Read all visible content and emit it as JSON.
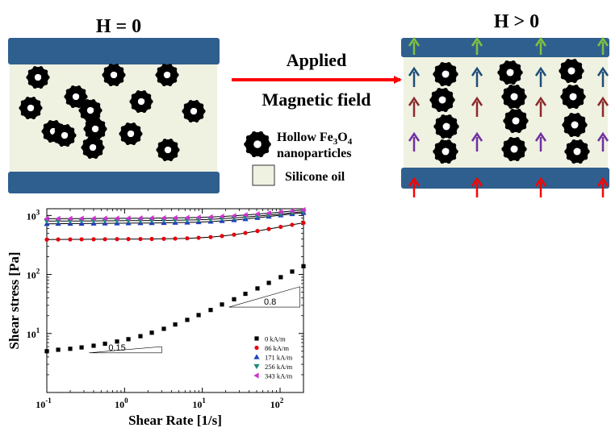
{
  "left_panel": {
    "title": "H = 0"
  },
  "right_panel": {
    "title": "H > 0"
  },
  "arrow_label": {
    "line1": "Applied",
    "line2": "Magnetic field"
  },
  "legend": {
    "particle_line1": "Hollow Fe",
    "particle_sub": "3",
    "particle_mid": "O",
    "particle_sub2": "4",
    "particle_line2": "nanoparticles",
    "oil_label": "Silicone oil"
  },
  "colors": {
    "plate": "#2f5f8e",
    "fluid": "#eff1e1",
    "arrow": "#ff0000",
    "field_rows": [
      "#80c040",
      "#1f4e79",
      "#8b2a2a",
      "#7030a0",
      "#ff0000"
    ]
  },
  "chart_data": {
    "type": "scatter",
    "xlabel": "Shear Rate [1/s]",
    "ylabel": "Shear stress [Pa]",
    "xscale": "log",
    "yscale": "log",
    "xlim": [
      0.1,
      200
    ],
    "ylim": [
      1,
      1300
    ],
    "x_ticks": [
      "10",
      "10",
      "10",
      "10"
    ],
    "x_tick_exps": [
      "-1",
      "0",
      "1",
      "2"
    ],
    "y_ticks": [
      "10",
      "10",
      "10"
    ],
    "y_tick_exps": [
      "1",
      "2",
      "3"
    ],
    "legend_position": "lower-right",
    "annotations": [
      "0.15",
      "0.8"
    ],
    "series": [
      {
        "name": "0 kA/m",
        "color": "#000000",
        "marker": "square",
        "x": [
          0.1,
          0.14,
          0.2,
          0.28,
          0.4,
          0.56,
          0.8,
          1.12,
          1.6,
          2.24,
          3.2,
          4.48,
          6.4,
          8.96,
          12.8,
          17.9,
          25.6,
          35.8,
          51.2,
          71.7,
          102,
          143,
          200
        ],
        "y": [
          5.0,
          5.3,
          5.5,
          5.8,
          6.2,
          6.7,
          7.3,
          8.0,
          9.0,
          10.3,
          12.0,
          14.2,
          17.0,
          20.5,
          25.0,
          31.0,
          38.0,
          47.0,
          58.0,
          72.0,
          90.0,
          112.0,
          138.0
        ]
      },
      {
        "name": "86 kA/m",
        "color": "#e8000b",
        "marker": "circle",
        "x": [
          0.1,
          0.14,
          0.2,
          0.28,
          0.4,
          0.56,
          0.8,
          1.12,
          1.6,
          2.24,
          3.2,
          4.48,
          6.4,
          8.96,
          12.8,
          17.9,
          25.6,
          35.8,
          51.2,
          71.7,
          102,
          143,
          200
        ],
        "y": [
          390,
          392,
          393,
          394,
          395,
          396,
          397,
          398,
          399,
          400,
          402,
          405,
          410,
          418,
          430,
          448,
          472,
          505,
          545,
          590,
          640,
          695,
          750
        ]
      },
      {
        "name": "171 kA/m",
        "color": "#1f3fbf",
        "marker": "triangle",
        "x": [
          0.1,
          0.14,
          0.2,
          0.28,
          0.4,
          0.56,
          0.8,
          1.12,
          1.6,
          2.24,
          3.2,
          4.48,
          6.4,
          8.96,
          12.8,
          17.9,
          25.6,
          35.8,
          51.2,
          71.7,
          102,
          143,
          200
        ],
        "y": [
          720,
          725,
          728,
          730,
          732,
          735,
          738,
          740,
          743,
          746,
          750,
          755,
          762,
          772,
          787,
          808,
          835,
          870,
          912,
          960,
          1010,
          1060,
          1110
        ]
      },
      {
        "name": "256 kA/m",
        "color": "#1a8a7a",
        "marker": "triangle-down",
        "x": [
          0.1,
          0.14,
          0.2,
          0.28,
          0.4,
          0.56,
          0.8,
          1.12,
          1.6,
          2.24,
          3.2,
          4.48,
          6.4,
          8.96,
          12.8,
          17.9,
          25.6,
          35.8,
          51.2,
          71.7,
          102,
          143,
          200
        ],
        "y": [
          800,
          803,
          805,
          807,
          809,
          811,
          813,
          815,
          818,
          821,
          825,
          830,
          837,
          846,
          860,
          880,
          905,
          938,
          975,
          1015,
          1060,
          1110,
          1160
        ]
      },
      {
        "name": "343 kA/m",
        "color": "#cc33cc",
        "marker": "triangle-left",
        "x": [
          0.1,
          0.14,
          0.2,
          0.28,
          0.4,
          0.56,
          0.8,
          1.12,
          1.6,
          2.24,
          3.2,
          4.48,
          6.4,
          8.96,
          12.8,
          17.9,
          25.6,
          35.8,
          51.2,
          71.7,
          102,
          143,
          200
        ],
        "y": [
          880,
          883,
          885,
          887,
          889,
          891,
          893,
          895,
          898,
          901,
          905,
          910,
          917,
          926,
          940,
          960,
          985,
          1018,
          1055,
          1095,
          1140,
          1190,
          1240
        ]
      }
    ]
  }
}
